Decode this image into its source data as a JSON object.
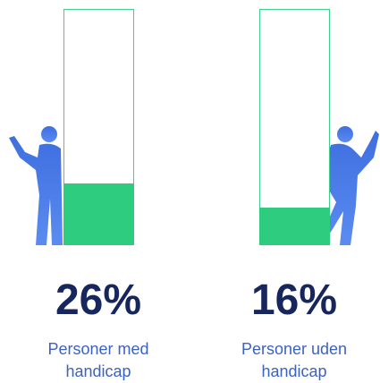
{
  "chart_data": {
    "type": "bar",
    "categories": [
      "Personer med handicap",
      "Personer uden handicap"
    ],
    "values": [
      26,
      16
    ],
    "value_labels": [
      "26%",
      "16%"
    ],
    "color": "#2ecc7f",
    "ylim": [
      0,
      100
    ]
  }
}
